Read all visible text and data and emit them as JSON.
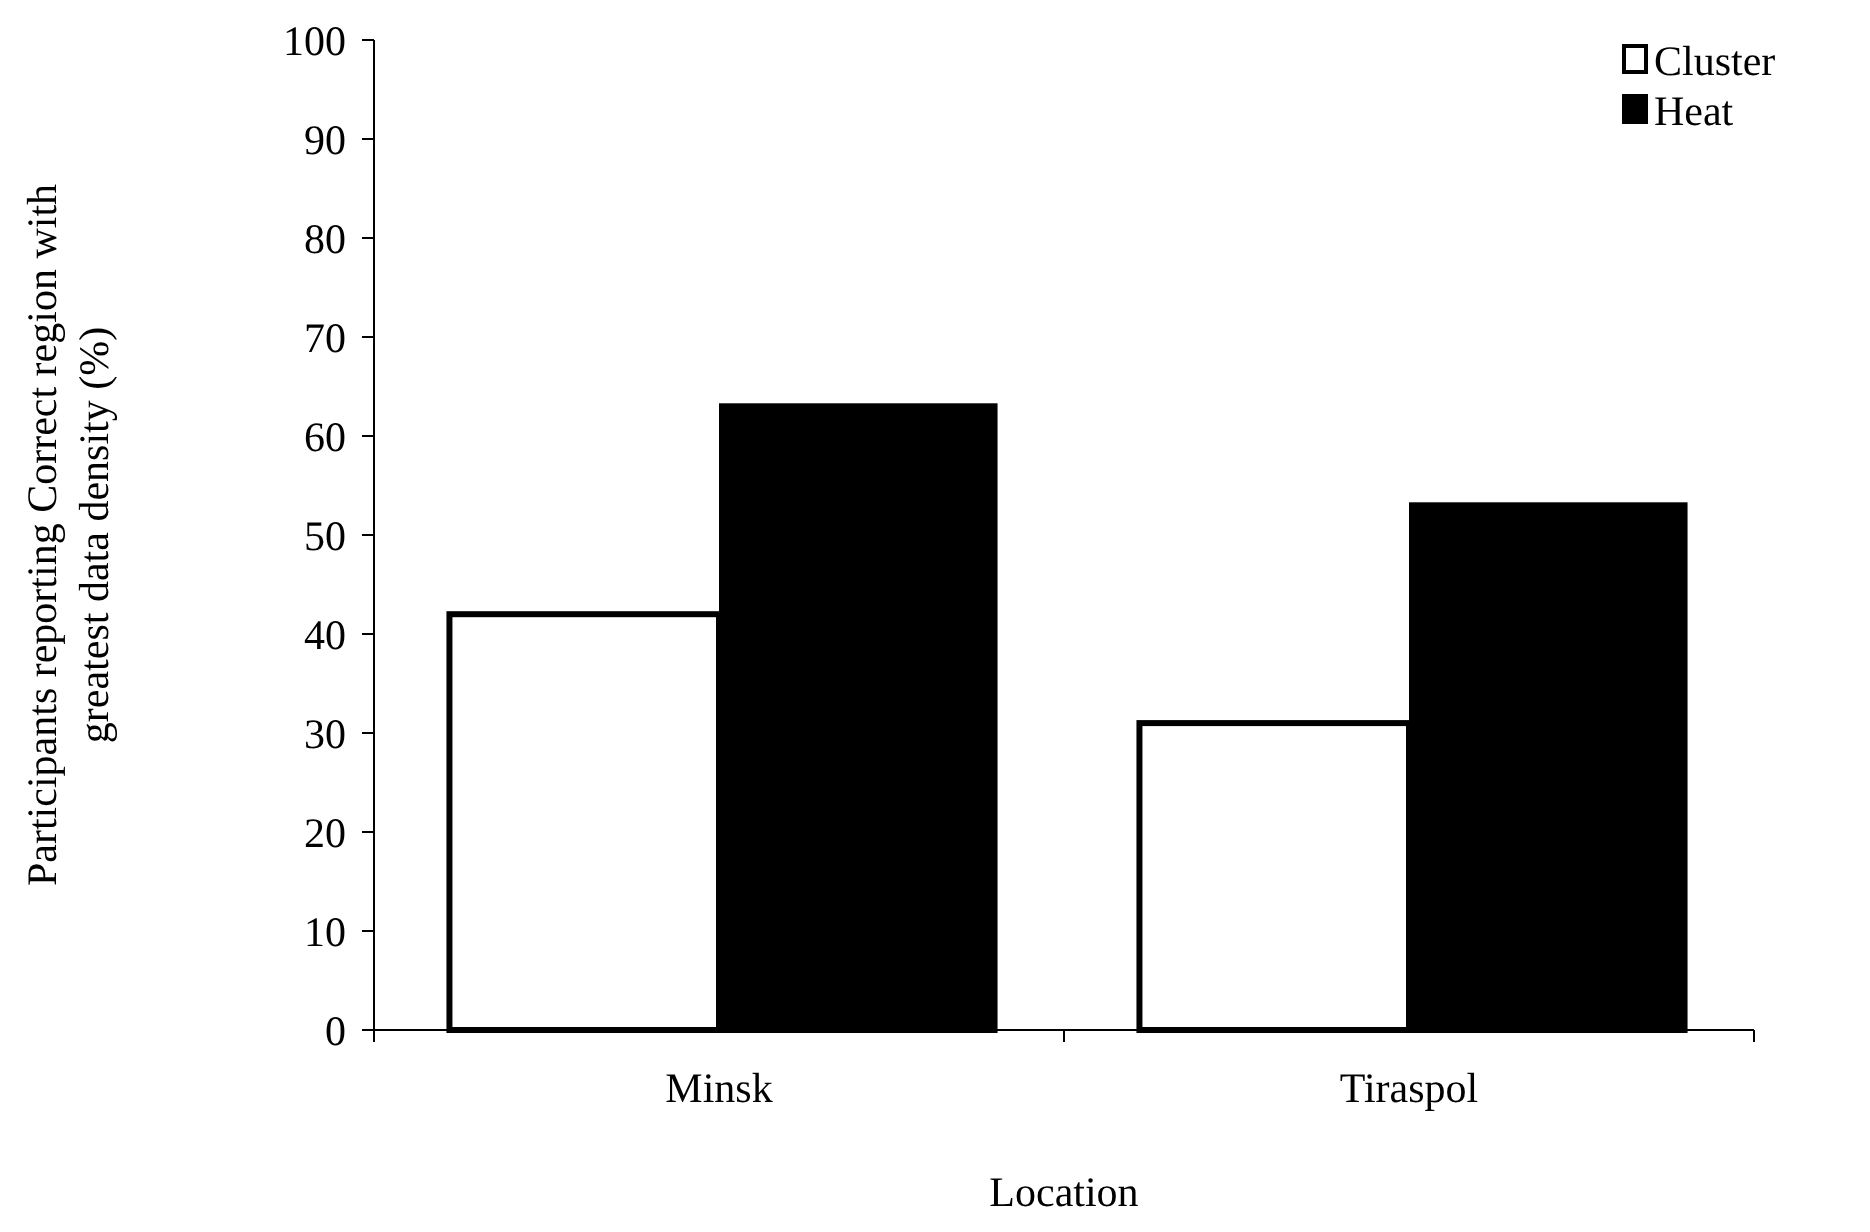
{
  "chart_data": {
    "type": "bar",
    "xlabel": "Location",
    "ylabel": "Participants reporting Correct region with greatest data density (%)",
    "categories": [
      "Minsk",
      "Tiraspol"
    ],
    "series": [
      {
        "name": "Cluster",
        "color": "#ffffff",
        "values": [
          42,
          31
        ]
      },
      {
        "name": "Heat",
        "color": "#000000",
        "values": [
          63,
          53
        ]
      }
    ],
    "ylim": [
      0,
      100
    ],
    "yticks": [
      0,
      10,
      20,
      30,
      40,
      50,
      60,
      70,
      80,
      90,
      100
    ],
    "legend": "top right"
  }
}
